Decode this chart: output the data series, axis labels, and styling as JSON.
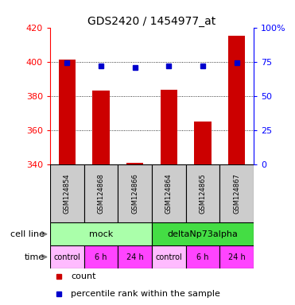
{
  "title": "GDS2420 / 1454977_at",
  "samples": [
    "GSM124854",
    "GSM124868",
    "GSM124866",
    "GSM124864",
    "GSM124865",
    "GSM124867"
  ],
  "count_values": [
    401.5,
    383.0,
    341.0,
    383.5,
    365.0,
    415.0
  ],
  "percentile_values": [
    74.0,
    72.0,
    71.0,
    72.0,
    72.0,
    74.0
  ],
  "ylim_left": [
    340,
    420
  ],
  "ylim_right": [
    0,
    100
  ],
  "yticks_left": [
    340,
    360,
    380,
    400,
    420
  ],
  "yticks_right": [
    0,
    25,
    50,
    75,
    100
  ],
  "ytick_right_labels": [
    "0",
    "25",
    "50",
    "75",
    "100%"
  ],
  "bar_color": "#cc0000",
  "dot_color": "#0000cc",
  "cell_line_labels": [
    "mock",
    "deltaNp73alpha"
  ],
  "cell_line_colors": [
    "#aaffaa",
    "#44dd44"
  ],
  "cell_line_spans": [
    [
      0,
      3
    ],
    [
      3,
      6
    ]
  ],
  "time_labels": [
    "control",
    "6 h",
    "24 h",
    "control",
    "6 h",
    "24 h"
  ],
  "time_colors": [
    "#ffbbff",
    "#ff44ff",
    "#ff44ff",
    "#ffbbff",
    "#ff44ff",
    "#ff44ff"
  ],
  "sample_bg_color": "#cccccc",
  "row_label_cell_line": "cell line",
  "row_label_time": "time",
  "legend_count_color": "#cc0000",
  "legend_dot_color": "#0000cc"
}
